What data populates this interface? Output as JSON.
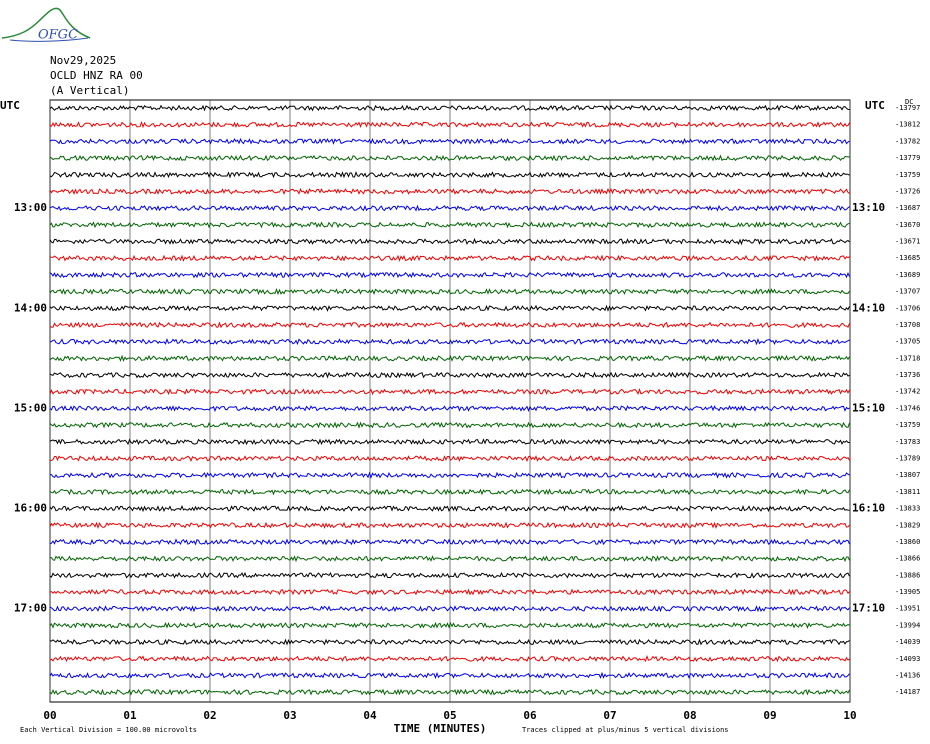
{
  "header": {
    "logo": "OFGC",
    "date": "Nov29,2025",
    "station": "OCLD HNZ RA 00",
    "component": "(A Vertical)"
  },
  "plot": {
    "left_top": "UTC",
    "right_top": "UTC",
    "right_corner": "DC",
    "left_hour_labels": [
      "13:00",
      "14:00",
      "15:00",
      "16:00",
      "17:00"
    ],
    "right_time_labels": [
      "13:10",
      "14:10",
      "15:10",
      "16:10",
      "17:10"
    ],
    "trace_offsets": [
      -13797,
      -13812,
      -13782,
      -13779,
      -13759,
      -13726,
      -13687,
      -13670,
      -13671,
      -13685,
      -13689,
      -13707,
      -13706,
      -13708,
      -13705,
      -13718,
      -13736,
      -13742,
      -13746,
      -13759,
      -13783,
      -13789,
      -13807,
      -13811,
      -13833,
      -13829,
      -13860,
      -13866,
      -13886,
      -13905,
      -13951,
      -13994,
      -14039,
      -14093,
      -14136,
      -14187
    ],
    "trace_colors": [
      "#000000",
      "#ee0000",
      "#0000ee",
      "#006400"
    ],
    "x_labels": [
      "00",
      "01",
      "02",
      "03",
      "04",
      "05",
      "06",
      "07",
      "08",
      "09",
      "10"
    ],
    "x_title": "TIME (MINUTES)"
  },
  "footer": {
    "scale_note": "Each Vertical Division =  100.00 microvolts",
    "clip_note": "Traces clipped at plus/minus 5 vertical divisions"
  }
}
